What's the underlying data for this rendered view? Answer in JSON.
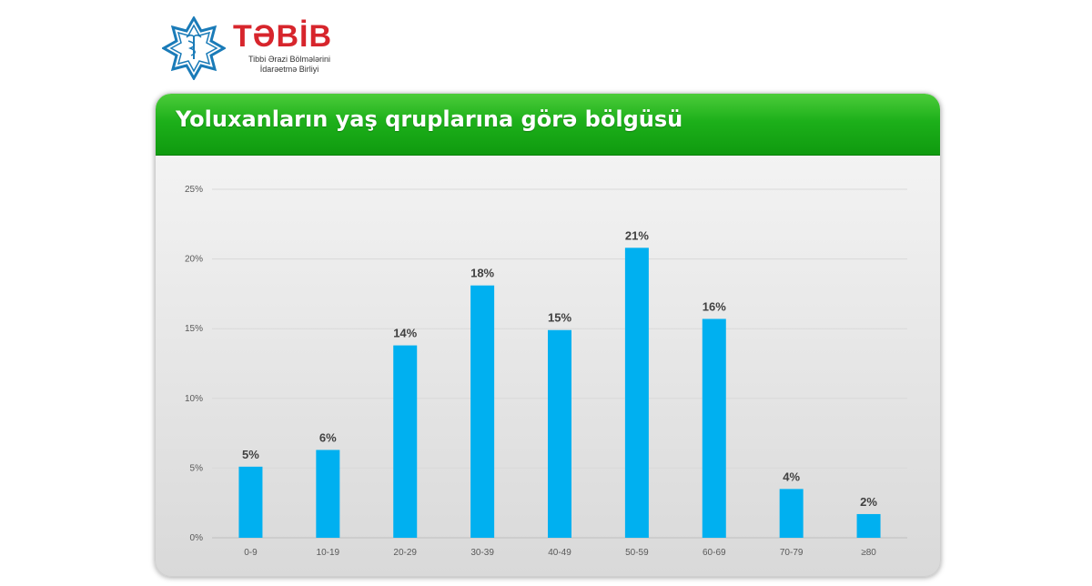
{
  "logo": {
    "name": "TƏBİB",
    "subtitle_line1": "Tibbi Ərazi Bölmələrini",
    "subtitle_line2": "İdarəetmə Birliyi",
    "color": "#d7252c",
    "accent_color": "#1a7bb8"
  },
  "header": {
    "title": "Yoluxanların yaş qruplarına görə bölgüsü",
    "color": "#1db01a"
  },
  "chart_data": {
    "type": "bar",
    "categories": [
      "0-9",
      "10-19",
      "20-29",
      "30-39",
      "40-49",
      "50-59",
      "60-69",
      "70-79",
      "≥80"
    ],
    "values": [
      5.1,
      6.3,
      13.8,
      18.1,
      14.9,
      20.8,
      15.7,
      3.5,
      1.7
    ],
    "data_labels": [
      "5%",
      "6%",
      "14%",
      "18%",
      "15%",
      "21%",
      "16%",
      "4%",
      "2%"
    ],
    "y_ticks": [
      "0%",
      "5%",
      "10%",
      "15%",
      "20%",
      "25%"
    ],
    "ylim": [
      0,
      25
    ],
    "grid": true,
    "bar_color": "#00b0f0",
    "title": "",
    "xlabel": "",
    "ylabel": ""
  }
}
